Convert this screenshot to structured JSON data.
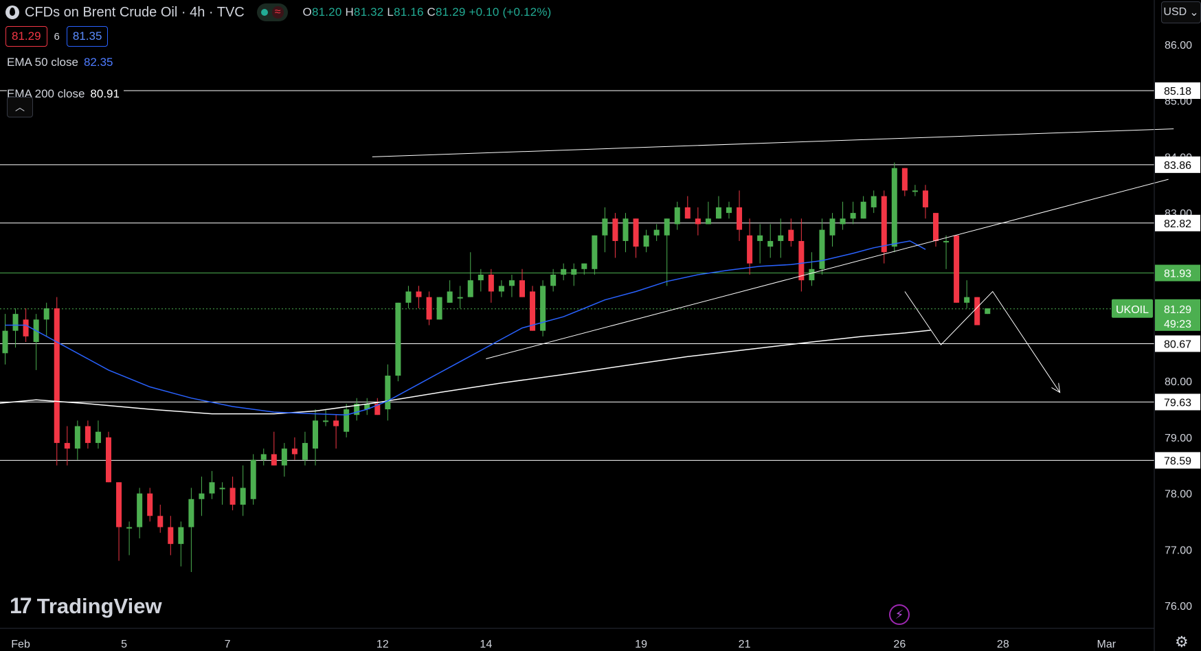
{
  "header": {
    "title": "CFDs on Brent Crude Oil · 4h · TVC",
    "ohlc": {
      "o_label": "O",
      "o": "81.20",
      "h_label": "H",
      "h": "81.32",
      "l_label": "L",
      "l": "81.16",
      "c_label": "C",
      "c": "81.29",
      "change": "+0.10 (+0.12%)"
    }
  },
  "trade": {
    "sell": "81.29",
    "spread": "6",
    "buy": "81.35"
  },
  "indicators": {
    "ema50": {
      "label": "EMA 50 close",
      "value": "82.35"
    },
    "ema200": {
      "label": "EMA 200 close",
      "value": "80.91"
    }
  },
  "currency": "USD",
  "brand": "TradingView",
  "colors": {
    "up": "#4caf50",
    "down": "#f23645",
    "ema50": "#2962ff",
    "ema200": "#ffffff",
    "current": "#4caf50"
  },
  "chart_data": {
    "type": "candlestick",
    "symbol": "UKOIL",
    "timeframe": "4h",
    "ylim": [
      75.7,
      87.0
    ],
    "y_ticks": [
      "76.00",
      "77.00",
      "78.00",
      "79.00",
      "80.00",
      "83.00",
      "84.00",
      "85.00",
      "86.00"
    ],
    "x_ticks": [
      {
        "i": 1.5,
        "label": "Feb"
      },
      {
        "i": 11.5,
        "label": "5"
      },
      {
        "i": 21.5,
        "label": "7"
      },
      {
        "i": 36.5,
        "label": "12"
      },
      {
        "i": 46.5,
        "label": "14"
      },
      {
        "i": 61.5,
        "label": "19"
      },
      {
        "i": 71.5,
        "label": "21"
      },
      {
        "i": 86.5,
        "label": "26"
      },
      {
        "i": 96.5,
        "label": "28"
      },
      {
        "i": 106.5,
        "label": "Mar"
      }
    ],
    "levels": [
      {
        "value": 85.18,
        "label": "85.18"
      },
      {
        "value": 83.86,
        "label": "83.86"
      },
      {
        "value": 82.82,
        "label": "82.82"
      },
      {
        "value": 81.93,
        "label": "81.93",
        "green": true
      },
      {
        "value": 80.67,
        "label": "80.67"
      },
      {
        "value": 79.63,
        "label": "79.63"
      },
      {
        "value": 78.59,
        "label": "78.59"
      }
    ],
    "current": {
      "symbol": "UKOIL",
      "price": "81.29",
      "countdown": "49:23",
      "value": 81.29
    },
    "candles": [
      {
        "o": 80.5,
        "h": 81.2,
        "l": 80.3,
        "c": 80.9
      },
      {
        "o": 80.9,
        "h": 81.3,
        "l": 80.6,
        "c": 81.2
      },
      {
        "o": 81.1,
        "h": 81.3,
        "l": 80.7,
        "c": 80.8
      },
      {
        "o": 80.7,
        "h": 81.2,
        "l": 80.2,
        "c": 81.1
      },
      {
        "o": 81.1,
        "h": 81.4,
        "l": 80.8,
        "c": 81.3
      },
      {
        "o": 81.3,
        "h": 81.5,
        "l": 78.5,
        "c": 78.9
      },
      {
        "o": 78.9,
        "h": 79.2,
        "l": 78.5,
        "c": 78.8
      },
      {
        "o": 78.8,
        "h": 79.3,
        "l": 78.6,
        "c": 79.2
      },
      {
        "o": 79.2,
        "h": 79.3,
        "l": 78.8,
        "c": 78.9
      },
      {
        "o": 78.9,
        "h": 79.3,
        "l": 78.8,
        "c": 79.1
      },
      {
        "o": 79.0,
        "h": 79.1,
        "l": 78.2,
        "c": 78.2
      },
      {
        "o": 78.2,
        "h": 78.2,
        "l": 76.8,
        "c": 77.4
      },
      {
        "o": 77.4,
        "h": 77.5,
        "l": 76.9,
        "c": 77.4
      },
      {
        "o": 77.4,
        "h": 78.1,
        "l": 77.2,
        "c": 78.0
      },
      {
        "o": 78.0,
        "h": 78.1,
        "l": 77.5,
        "c": 77.6
      },
      {
        "o": 77.6,
        "h": 77.8,
        "l": 77.3,
        "c": 77.4
      },
      {
        "o": 77.4,
        "h": 77.6,
        "l": 76.9,
        "c": 77.1
      },
      {
        "o": 77.1,
        "h": 77.5,
        "l": 76.7,
        "c": 77.4
      },
      {
        "o": 77.4,
        "h": 78.1,
        "l": 76.6,
        "c": 77.9
      },
      {
        "o": 77.9,
        "h": 78.3,
        "l": 77.6,
        "c": 78.0
      },
      {
        "o": 78.0,
        "h": 78.4,
        "l": 77.9,
        "c": 78.2
      },
      {
        "o": 78.1,
        "h": 78.2,
        "l": 77.8,
        "c": 78.1
      },
      {
        "o": 78.1,
        "h": 78.3,
        "l": 77.7,
        "c": 77.8
      },
      {
        "o": 77.8,
        "h": 78.5,
        "l": 77.6,
        "c": 78.1
      },
      {
        "o": 77.9,
        "h": 78.7,
        "l": 77.8,
        "c": 78.6
      },
      {
        "o": 78.6,
        "h": 78.8,
        "l": 78.5,
        "c": 78.7
      },
      {
        "o": 78.7,
        "h": 79.1,
        "l": 78.5,
        "c": 78.5
      },
      {
        "o": 78.5,
        "h": 78.9,
        "l": 78.3,
        "c": 78.8
      },
      {
        "o": 78.8,
        "h": 79.0,
        "l": 78.6,
        "c": 78.7
      },
      {
        "o": 78.6,
        "h": 79.1,
        "l": 78.5,
        "c": 78.9
      },
      {
        "o": 78.8,
        "h": 79.5,
        "l": 78.5,
        "c": 79.3
      },
      {
        "o": 79.3,
        "h": 79.5,
        "l": 79.2,
        "c": 79.3
      },
      {
        "o": 79.3,
        "h": 79.4,
        "l": 78.8,
        "c": 79.2
      },
      {
        "o": 79.1,
        "h": 79.6,
        "l": 79.0,
        "c": 79.5
      },
      {
        "o": 79.4,
        "h": 79.7,
        "l": 79.3,
        "c": 79.6
      },
      {
        "o": 79.5,
        "h": 79.7,
        "l": 79.4,
        "c": 79.6
      },
      {
        "o": 79.6,
        "h": 79.7,
        "l": 79.4,
        "c": 79.4
      },
      {
        "o": 79.5,
        "h": 80.3,
        "l": 79.3,
        "c": 80.1
      },
      {
        "o": 80.1,
        "h": 81.4,
        "l": 80.0,
        "c": 81.4
      },
      {
        "o": 81.4,
        "h": 81.7,
        "l": 81.3,
        "c": 81.6
      },
      {
        "o": 81.6,
        "h": 81.7,
        "l": 81.3,
        "c": 81.5
      },
      {
        "o": 81.5,
        "h": 81.6,
        "l": 81.0,
        "c": 81.1
      },
      {
        "o": 81.1,
        "h": 81.5,
        "l": 81.1,
        "c": 81.5
      },
      {
        "o": 81.4,
        "h": 81.8,
        "l": 81.4,
        "c": 81.6
      },
      {
        "o": 81.5,
        "h": 81.7,
        "l": 81.3,
        "c": 81.5
      },
      {
        "o": 81.5,
        "h": 82.3,
        "l": 81.5,
        "c": 81.8
      },
      {
        "o": 81.8,
        "h": 82.0,
        "l": 81.6,
        "c": 81.9
      },
      {
        "o": 81.9,
        "h": 82.0,
        "l": 81.4,
        "c": 81.6
      },
      {
        "o": 81.6,
        "h": 81.8,
        "l": 81.5,
        "c": 81.7
      },
      {
        "o": 81.7,
        "h": 81.9,
        "l": 81.5,
        "c": 81.8
      },
      {
        "o": 81.8,
        "h": 82.0,
        "l": 81.5,
        "c": 81.5
      },
      {
        "o": 81.6,
        "h": 81.7,
        "l": 80.9,
        "c": 80.9
      },
      {
        "o": 80.9,
        "h": 81.8,
        "l": 80.8,
        "c": 81.7
      },
      {
        "o": 81.7,
        "h": 82.0,
        "l": 81.6,
        "c": 81.9
      },
      {
        "o": 81.9,
        "h": 82.1,
        "l": 81.8,
        "c": 82.0
      },
      {
        "o": 81.9,
        "h": 82.1,
        "l": 81.7,
        "c": 82.0
      },
      {
        "o": 82.0,
        "h": 82.1,
        "l": 81.9,
        "c": 82.1
      },
      {
        "o": 82.0,
        "h": 82.6,
        "l": 81.9,
        "c": 82.6
      },
      {
        "o": 82.6,
        "h": 83.1,
        "l": 82.3,
        "c": 82.9
      },
      {
        "o": 82.9,
        "h": 83.0,
        "l": 82.2,
        "c": 82.5
      },
      {
        "o": 82.5,
        "h": 83.0,
        "l": 82.3,
        "c": 82.9
      },
      {
        "o": 82.9,
        "h": 82.9,
        "l": 82.2,
        "c": 82.4
      },
      {
        "o": 82.4,
        "h": 82.7,
        "l": 82.3,
        "c": 82.6
      },
      {
        "o": 82.6,
        "h": 82.8,
        "l": 82.5,
        "c": 82.7
      },
      {
        "o": 82.6,
        "h": 82.9,
        "l": 81.7,
        "c": 82.9
      },
      {
        "o": 82.8,
        "h": 83.2,
        "l": 82.7,
        "c": 83.1
      },
      {
        "o": 83.1,
        "h": 83.3,
        "l": 82.9,
        "c": 82.9
      },
      {
        "o": 82.9,
        "h": 83.1,
        "l": 82.6,
        "c": 82.8
      },
      {
        "o": 82.8,
        "h": 83.2,
        "l": 82.8,
        "c": 82.9
      },
      {
        "o": 82.9,
        "h": 83.3,
        "l": 82.9,
        "c": 83.1
      },
      {
        "o": 83.0,
        "h": 83.2,
        "l": 82.9,
        "c": 83.1
      },
      {
        "o": 83.1,
        "h": 83.4,
        "l": 82.5,
        "c": 82.7
      },
      {
        "o": 82.6,
        "h": 82.9,
        "l": 81.9,
        "c": 82.1
      },
      {
        "o": 82.5,
        "h": 82.8,
        "l": 82.1,
        "c": 82.6
      },
      {
        "o": 82.4,
        "h": 82.8,
        "l": 82.2,
        "c": 82.5
      },
      {
        "o": 82.5,
        "h": 82.9,
        "l": 82.2,
        "c": 82.6
      },
      {
        "o": 82.7,
        "h": 82.9,
        "l": 82.4,
        "c": 82.5
      },
      {
        "o": 82.5,
        "h": 82.9,
        "l": 81.6,
        "c": 81.8
      },
      {
        "o": 81.8,
        "h": 82.3,
        "l": 81.7,
        "c": 82.0
      },
      {
        "o": 82.0,
        "h": 82.9,
        "l": 81.9,
        "c": 82.7
      },
      {
        "o": 82.6,
        "h": 83.0,
        "l": 82.4,
        "c": 82.9
      },
      {
        "o": 82.8,
        "h": 83.2,
        "l": 82.7,
        "c": 82.9
      },
      {
        "o": 82.9,
        "h": 83.2,
        "l": 82.8,
        "c": 83.0
      },
      {
        "o": 82.9,
        "h": 83.3,
        "l": 82.9,
        "c": 83.2
      },
      {
        "o": 83.1,
        "h": 83.4,
        "l": 83.0,
        "c": 83.3
      },
      {
        "o": 83.3,
        "h": 83.4,
        "l": 82.1,
        "c": 82.3
      },
      {
        "o": 82.4,
        "h": 83.9,
        "l": 82.3,
        "c": 83.8
      },
      {
        "o": 83.8,
        "h": 83.8,
        "l": 83.3,
        "c": 83.4
      },
      {
        "o": 83.4,
        "h": 83.5,
        "l": 83.3,
        "c": 83.4
      },
      {
        "o": 83.4,
        "h": 83.5,
        "l": 82.9,
        "c": 83.1
      },
      {
        "o": 83.0,
        "h": 83.0,
        "l": 82.4,
        "c": 82.5
      },
      {
        "o": 82.5,
        "h": 82.6,
        "l": 82.0,
        "c": 82.5
      },
      {
        "o": 82.6,
        "h": 82.6,
        "l": 81.4,
        "c": 81.4
      },
      {
        "o": 81.4,
        "h": 81.8,
        "l": 81.3,
        "c": 81.5
      },
      {
        "o": 81.5,
        "h": 81.5,
        "l": 81.0,
        "c": 81.0
      },
      {
        "o": 81.2,
        "h": 81.3,
        "l": 81.2,
        "c": 81.3
      }
    ],
    "ema50": [
      [
        0,
        81.0
      ],
      [
        2,
        81.0
      ],
      [
        6,
        80.6
      ],
      [
        10,
        80.2
      ],
      [
        14,
        79.9
      ],
      [
        18,
        79.7
      ],
      [
        22,
        79.55
      ],
      [
        26,
        79.45
      ],
      [
        30,
        79.42
      ],
      [
        33,
        79.4
      ],
      [
        35,
        79.5
      ],
      [
        37,
        79.65
      ],
      [
        40,
        79.95
      ],
      [
        43,
        80.25
      ],
      [
        46,
        80.55
      ],
      [
        48,
        80.75
      ],
      [
        50,
        80.95
      ],
      [
        52,
        81.05
      ],
      [
        54,
        81.15
      ],
      [
        56,
        81.3
      ],
      [
        58,
        81.45
      ],
      [
        61,
        81.6
      ],
      [
        64,
        81.78
      ],
      [
        67,
        81.9
      ],
      [
        70,
        81.98
      ],
      [
        73,
        82.05
      ],
      [
        76,
        82.08
      ],
      [
        79,
        82.15
      ],
      [
        82,
        82.28
      ],
      [
        84,
        82.38
      ],
      [
        86,
        82.45
      ],
      [
        87.5,
        82.5
      ],
      [
        89,
        82.35
      ]
    ],
    "ema200": [
      [
        -1,
        79.6
      ],
      [
        3,
        79.67
      ],
      [
        8,
        79.6
      ],
      [
        14,
        79.5
      ],
      [
        20,
        79.42
      ],
      [
        26,
        79.42
      ],
      [
        30,
        79.47
      ],
      [
        36,
        79.62
      ],
      [
        42,
        79.8
      ],
      [
        48,
        79.97
      ],
      [
        54,
        80.12
      ],
      [
        60,
        80.28
      ],
      [
        66,
        80.44
      ],
      [
        72,
        80.57
      ],
      [
        78,
        80.7
      ],
      [
        83,
        80.8
      ],
      [
        87,
        80.86
      ],
      [
        89.5,
        80.91
      ]
    ],
    "drawings": {
      "upper_trendline": [
        [
          35.5,
          84.0
        ],
        [
          113,
          84.5
        ]
      ],
      "lower_trendline": [
        [
          46.5,
          80.4
        ],
        [
          112.5,
          83.6
        ]
      ],
      "projection": [
        [
          87,
          81.6
        ],
        [
          90.5,
          80.65
        ],
        [
          95.5,
          81.6
        ],
        [
          102,
          79.8
        ]
      ]
    }
  }
}
